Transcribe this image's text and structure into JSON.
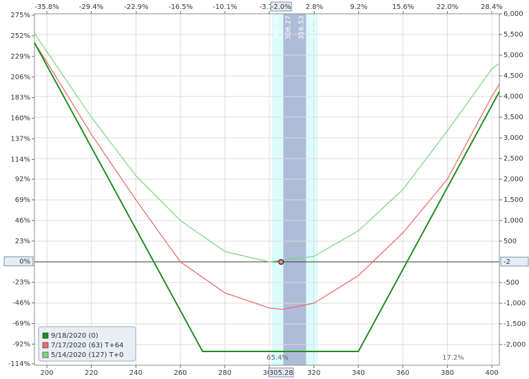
{
  "chart_data": {
    "type": "line",
    "xlim": [
      194.4,
      403.4
    ],
    "xticks": [
      200,
      220,
      240,
      260,
      280,
      300,
      320,
      340,
      360,
      380,
      400
    ],
    "x2lim": [
      -37.6,
      29.5
    ],
    "x2ticks": [
      {
        "value": -35.8,
        "label": "-35.8%"
      },
      {
        "value": -29.4,
        "label": "-29.4%"
      },
      {
        "value": -22.9,
        "label": "-22.9%"
      },
      {
        "value": -16.5,
        "label": "-16.5%"
      },
      {
        "value": -10.1,
        "label": "-10.1%"
      },
      {
        "value": -3.7,
        "label": "-3.7%"
      },
      {
        "value": 2.8,
        "label": "2.8%"
      },
      {
        "value": 9.2,
        "label": "9.2%"
      },
      {
        "value": 15.6,
        "label": "15.6%"
      },
      {
        "value": 22.0,
        "label": "22.0%"
      },
      {
        "value": 28.4,
        "label": "28.4%"
      }
    ],
    "ylim": [
      -2500,
      6000
    ],
    "yticks": [
      {
        "value": 6000,
        "label": "6,000"
      },
      {
        "value": 5500,
        "label": "5,500"
      },
      {
        "value": 5000,
        "label": "5,000"
      },
      {
        "value": 4500,
        "label": "4,500"
      },
      {
        "value": 4000,
        "label": "4,000"
      },
      {
        "value": 3500,
        "label": "3,500"
      },
      {
        "value": 3000,
        "label": "3,000"
      },
      {
        "value": 2500,
        "label": "2,500"
      },
      {
        "value": 2000,
        "label": "2,000"
      },
      {
        "value": 1500,
        "label": "1,500"
      },
      {
        "value": 1000,
        "label": "1,000"
      },
      500,
      -500,
      {
        "value": -1000,
        "label": "-1,000"
      },
      {
        "value": -1500,
        "label": "-1,500"
      },
      {
        "value": -2000,
        "label": "-2,000"
      }
    ],
    "y2lim": [
      -114,
      275
    ],
    "y2ticks": [
      {
        "value": 275,
        "label": "275%"
      },
      {
        "value": 252,
        "label": "252%"
      },
      {
        "value": 229,
        "label": "229%"
      },
      {
        "value": 206,
        "label": "206%"
      },
      {
        "value": 183,
        "label": "183%"
      },
      {
        "value": 160,
        "label": "160%"
      },
      {
        "value": 137,
        "label": "137%"
      },
      {
        "value": 114,
        "label": "114%"
      },
      {
        "value": 92,
        "label": "92%"
      },
      {
        "value": 69,
        "label": "69%"
      },
      {
        "value": 46,
        "label": "46%"
      },
      {
        "value": 23,
        "label": "23%"
      },
      {
        "value": -23,
        "label": "-23%"
      },
      {
        "value": -46,
        "label": "-46%"
      },
      {
        "value": -69,
        "label": "-69%"
      },
      {
        "value": -92,
        "label": "-92%"
      },
      {
        "value": -114,
        "label": "-114%"
      }
    ],
    "grid": true,
    "bands": [
      {
        "from": 301.06,
        "to": 321.76,
        "color": "#dcfcfc"
      },
      {
        "from": 306.27,
        "to": 316.53,
        "color": "#aebcd8"
      }
    ],
    "series": [
      {
        "name": "9/18/2020 (0)",
        "color": "#1e8c1e",
        "x": [
          194.4,
          270,
          340,
          403.4
        ],
        "values": [
          5300,
          -2167,
          -2167,
          4117
        ]
      },
      {
        "name": "7/17/2020 (63) T+64",
        "color": "#ee6b6b",
        "x": [
          194.4,
          200,
          220,
          240,
          260,
          280,
          300,
          306,
          320,
          340,
          360,
          380,
          400,
          403.4
        ],
        "values": [
          5300,
          4833,
          3083,
          1500,
          0,
          -750,
          -1117,
          -1150,
          -1000,
          -333,
          700,
          2000,
          4000,
          4300
        ]
      },
      {
        "name": "5/14/2020 (127) T+0",
        "color": "#7fd67f",
        "x": [
          194.4,
          200,
          220,
          240,
          260,
          280,
          300,
          320,
          340,
          360,
          380,
          400,
          403.4
        ],
        "values": [
          5533,
          5083,
          3500,
          2083,
          1000,
          250,
          0,
          133,
          750,
          1750,
          3167,
          4667,
          4800
        ]
      }
    ],
    "cursor": {
      "x": 305.28,
      "y": -2,
      "x_pct": {
        "value": -2.0,
        "label": "-2.0%"
      },
      "y_pct": {
        "value": 0,
        "label": "0%"
      }
    },
    "annotations": [
      "65.4%",
      "17.2%"
    ]
  }
}
